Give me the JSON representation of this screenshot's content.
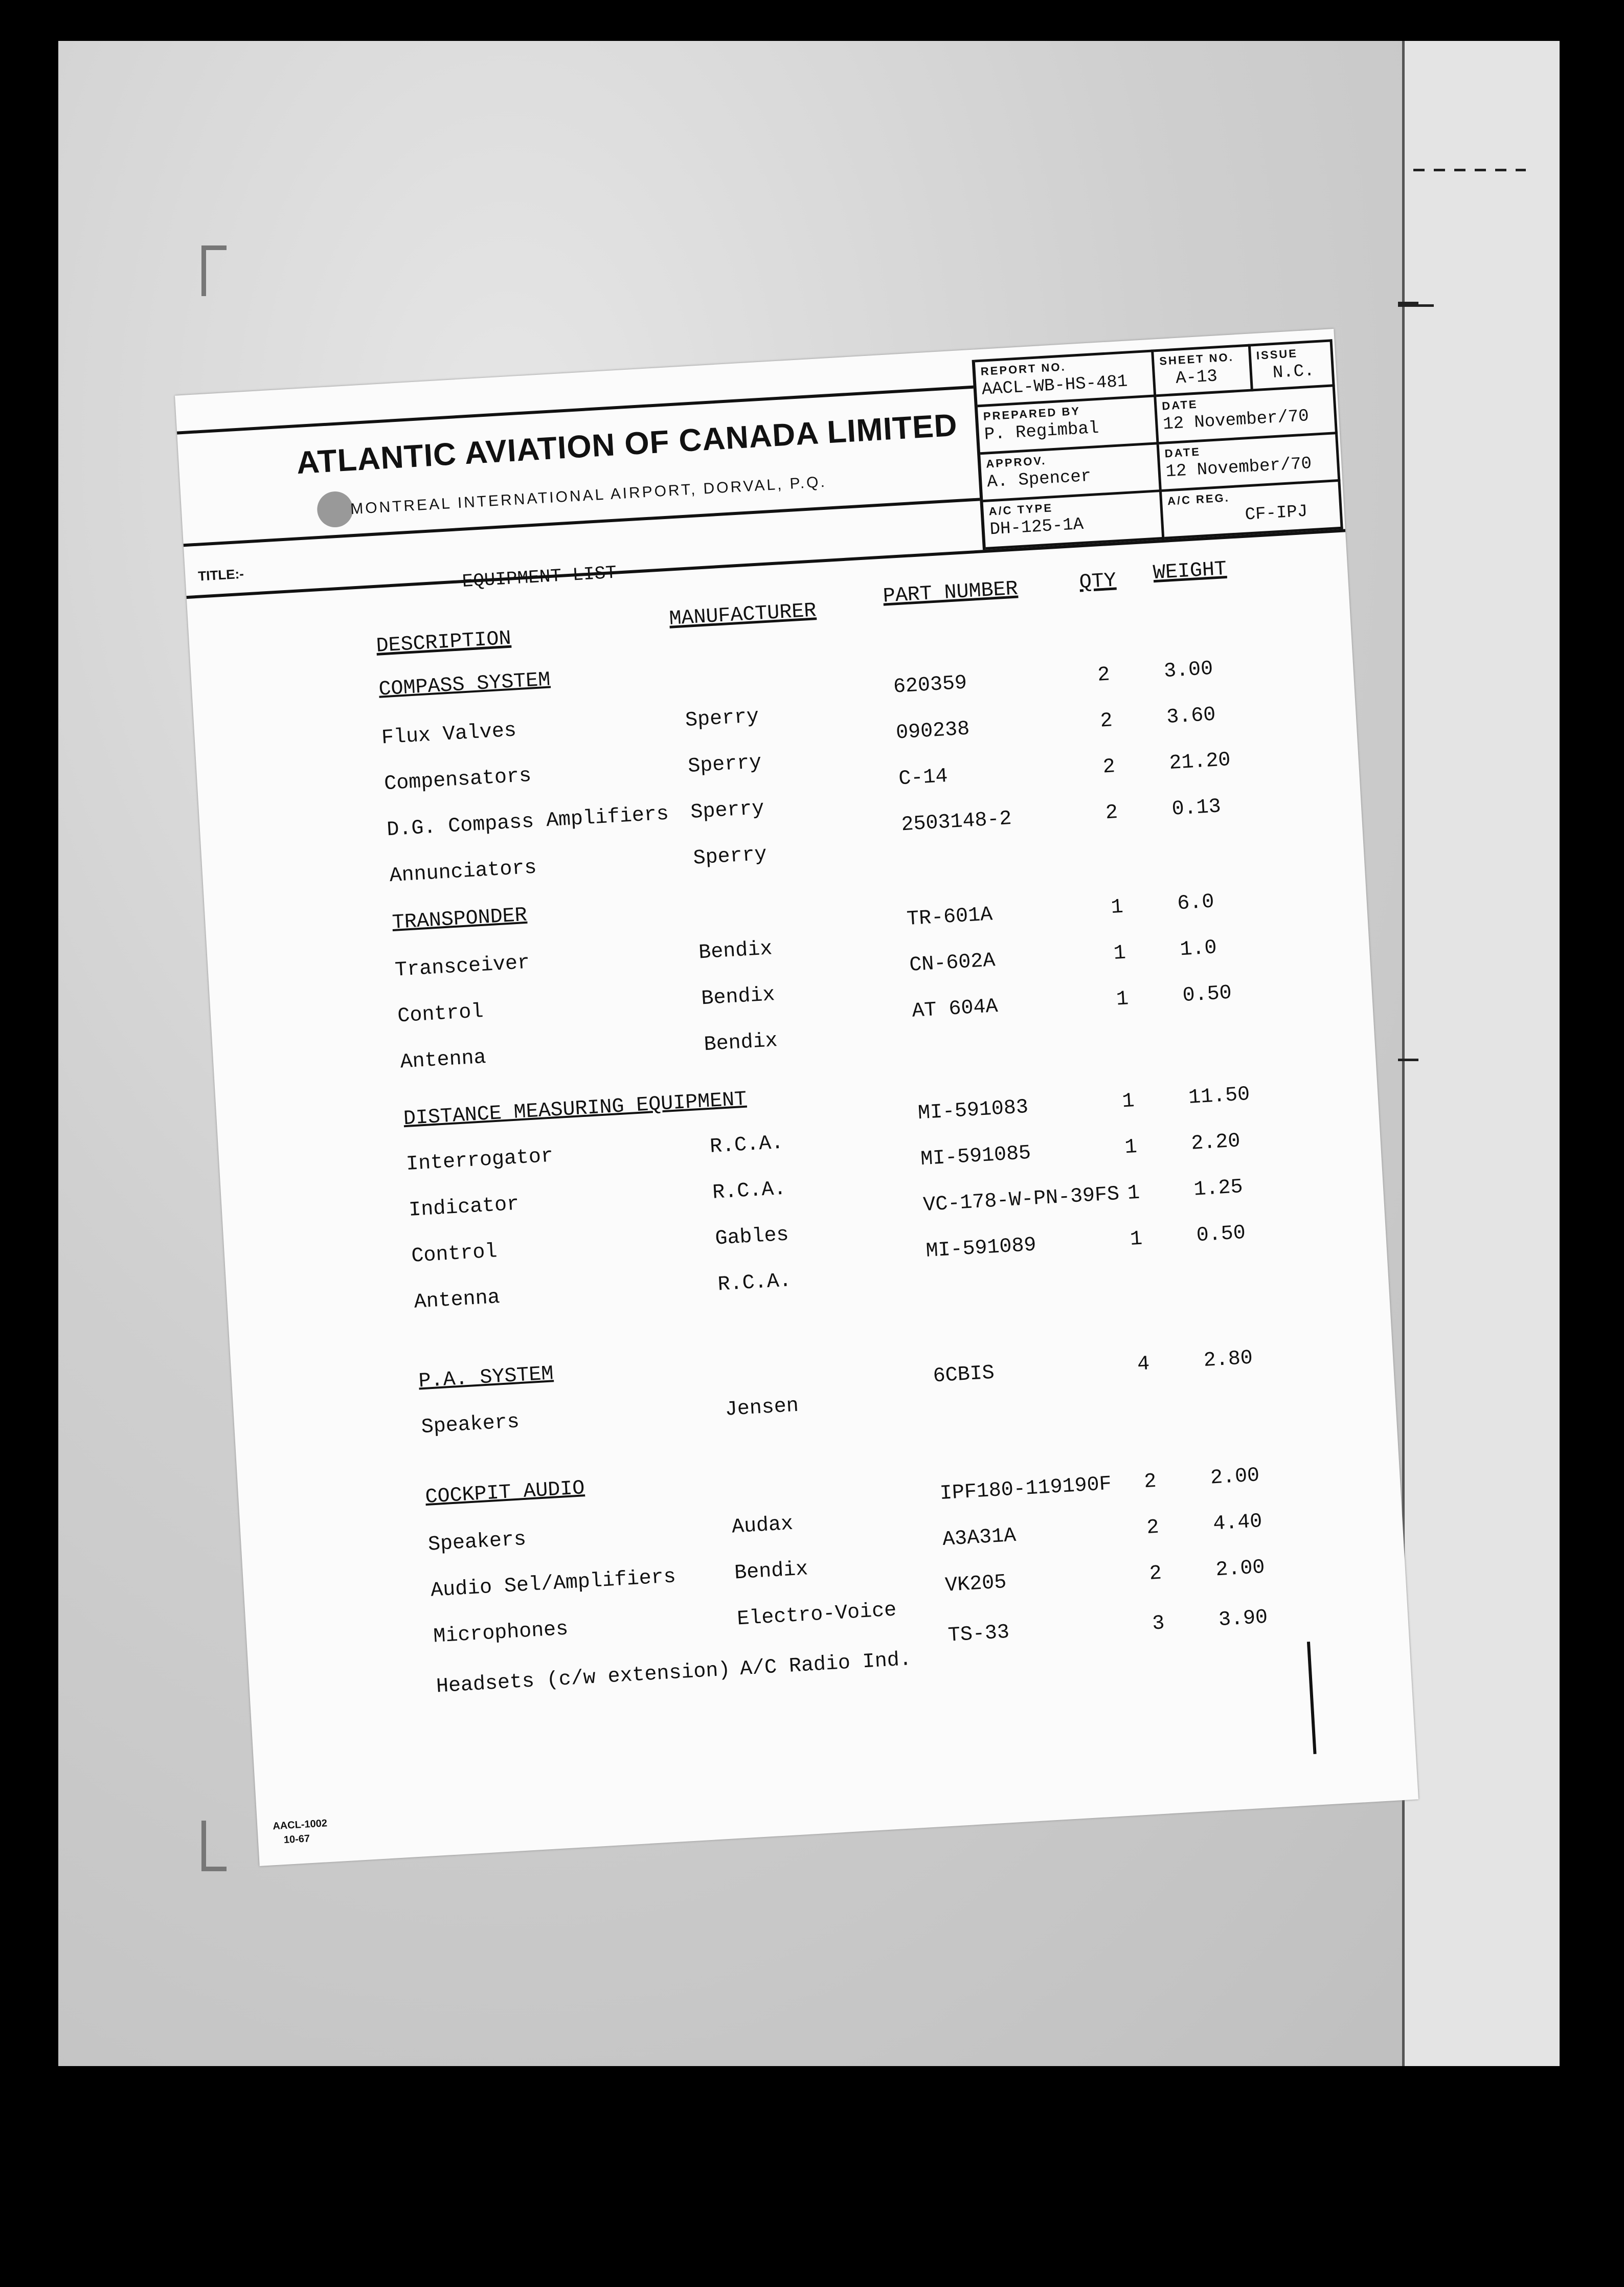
{
  "header": {
    "company": "ATLANTIC AVIATION OF CANADA LIMITED",
    "address": "MONTREAL INTERNATIONAL AIRPORT, DORVAL, P.Q.",
    "title_label": "TITLE:-",
    "title": "EQUIPMENT LIST"
  },
  "info": {
    "report_no_label": "REPORT NO.",
    "report_no": "AACL-WB-HS-481",
    "sheet_no_label": "SHEET NO.",
    "sheet_no": "A-13",
    "issue_label": "ISSUE",
    "issue": "N.C.",
    "prepared_by_label": "PREPARED BY",
    "prepared_by": "P. Regimbal",
    "date1_label": "DATE",
    "date1": "12 November/70",
    "approv_label": "APPROV.",
    "approv": "A. Spencer",
    "date2_label": "DATE",
    "date2": "12 November/70",
    "ac_type_label": "A/C TYPE",
    "ac_type": "DH-125-1A",
    "ac_reg_label": "A/C REG.",
    "ac_reg": "CF-IPJ"
  },
  "columns": {
    "description": "DESCRIPTION",
    "manufacturer": "MANUFACTURER",
    "part_number": "PART NUMBER",
    "qty": "QTY",
    "weight": "WEIGHT"
  },
  "rows": [
    {
      "section": "COMPASS SYSTEM"
    },
    {
      "description": "Flux Valves",
      "manufacturer": "Sperry",
      "part_number": "620359",
      "qty": "2",
      "weight": "3.00"
    },
    {
      "description": "Compensators",
      "manufacturer": "Sperry",
      "part_number": "090238",
      "qty": "2",
      "weight": "3.60"
    },
    {
      "description": "D.G. Compass Amplifiers",
      "manufacturer": "Sperry",
      "part_number": "C-14",
      "qty": "2",
      "weight": "21.20"
    },
    {
      "description": "Annunciators",
      "manufacturer": "Sperry",
      "part_number": "2503148-2",
      "qty": "2",
      "weight": "0.13"
    },
    {
      "section": "TRANSPONDER"
    },
    {
      "description": "Transceiver",
      "manufacturer": "Bendix",
      "part_number": "TR-601A",
      "qty": "1",
      "weight": "6.0"
    },
    {
      "description": "Control",
      "manufacturer": "Bendix",
      "part_number": "CN-602A",
      "qty": "1",
      "weight": "1.0"
    },
    {
      "description": "Antenna",
      "manufacturer": "Bendix",
      "part_number": "AT 604A",
      "qty": "1",
      "weight": "0.50"
    },
    {
      "section": "DISTANCE MEASURING EQUIPMENT"
    },
    {
      "description": "Interrogator",
      "manufacturer": "R.C.A.",
      "part_number": "MI-591083",
      "qty": "1",
      "weight": "11.50"
    },
    {
      "description": "Indicator",
      "manufacturer": "R.C.A.",
      "part_number": "MI-591085",
      "qty": "1",
      "weight": "2.20"
    },
    {
      "description": "Control",
      "manufacturer": "Gables",
      "part_number": "VC-178-W-PN-39FS",
      "qty": "1",
      "weight": "1.25"
    },
    {
      "description": "Antenna",
      "manufacturer": "R.C.A.",
      "part_number": "MI-591089",
      "qty": "1",
      "weight": "0.50"
    },
    {
      "section": "P.A. SYSTEM"
    },
    {
      "description": "Speakers",
      "manufacturer": "Jensen",
      "part_number": "6CBIS",
      "qty": "4",
      "weight": "2.80"
    },
    {
      "section": "COCKPIT AUDIO"
    },
    {
      "description": "Speakers",
      "manufacturer": "Audax",
      "part_number": "IPF180-119190F",
      "qty": "2",
      "weight": "2.00"
    },
    {
      "description": "Audio Sel/Amplifiers",
      "manufacturer": "Bendix",
      "part_number": "A3A31A",
      "qty": "2",
      "weight": "4.40"
    },
    {
      "description": "Microphones",
      "manufacturer": "Electro-Voice",
      "part_number": "VK205",
      "qty": "2",
      "weight": "2.00"
    },
    {
      "description": "Headsets (c/w extension)",
      "manufacturer": "A/C Radio Ind.",
      "part_number": "TS-33",
      "qty": "3",
      "weight": "3.90"
    }
  ],
  "footer": {
    "form_no": "AACL-1002",
    "form_date": "10-67"
  }
}
